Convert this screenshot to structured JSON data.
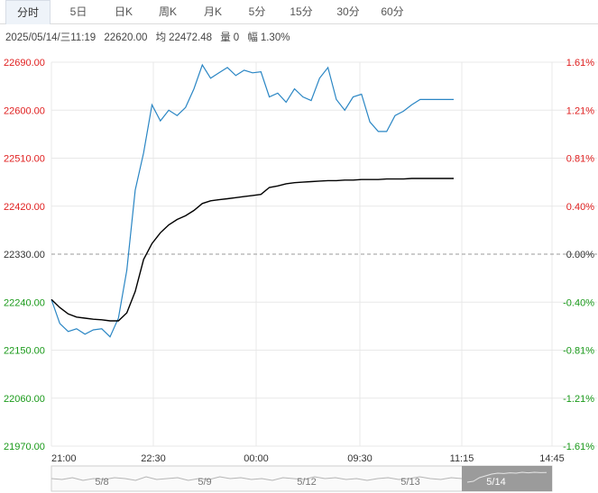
{
  "tabs": [
    {
      "label": "分时",
      "active": true
    },
    {
      "label": "5日",
      "active": false
    },
    {
      "label": "日K",
      "active": false
    },
    {
      "label": "周K",
      "active": false
    },
    {
      "label": "月K",
      "active": false
    },
    {
      "label": "5分",
      "active": false
    },
    {
      "label": "15分",
      "active": false
    },
    {
      "label": "30分",
      "active": false
    },
    {
      "label": "60分",
      "active": false
    }
  ],
  "info": {
    "datetime": "2025/05/14/三11:19",
    "price": "22620.00",
    "avg_label": "均",
    "avg_value": "22472.48",
    "vol_label": "量",
    "vol_value": "0",
    "amp_label": "幅",
    "amp_value": "1.30%"
  },
  "colors": {
    "price_line": "#2a86c4",
    "avg_line": "#000000",
    "up": "#e02020",
    "down": "#1a9a1a",
    "neutral": "#333333",
    "grid": "#e8e8e8",
    "baseline": "#9a9a9a",
    "nav_selected": "#8a8a8a"
  },
  "chart_data": {
    "type": "line",
    "ylim": [
      21970,
      22690
    ],
    "y_ticks": [
      "22690.00",
      "22600.00",
      "22510.00",
      "22420.00",
      "22330.00",
      "22240.00",
      "22150.00",
      "22060.00",
      "21970.00"
    ],
    "pct_ticks": [
      "1.61%",
      "1.21%",
      "0.81%",
      "0.40%",
      "0.00%",
      "-0.40%",
      "-0.81%",
      "-1.21%",
      "-1.61%"
    ],
    "x_ticks": [
      "21:00",
      "22:30",
      "00:00",
      "09:30",
      "11:15",
      "14:45"
    ],
    "prev_close": 22330,
    "x": [
      "21:00",
      "21:10",
      "21:20",
      "21:30",
      "21:40",
      "21:50",
      "22:00",
      "22:10",
      "22:20",
      "22:30",
      "22:40",
      "22:50",
      "23:00",
      "23:10",
      "23:20",
      "23:30",
      "23:40",
      "23:50",
      "00:00",
      "00:10",
      "00:20",
      "00:30",
      "00:40",
      "00:50",
      "01:00",
      "01:10",
      "01:20",
      "01:30",
      "01:40",
      "01:50",
      "02:00",
      "02:10",
      "02:20",
      "02:30",
      "09:00",
      "09:10",
      "09:20",
      "09:30",
      "09:40",
      "09:50",
      "10:00",
      "10:10",
      "10:20",
      "10:30",
      "10:40",
      "10:50",
      "11:00",
      "11:10",
      "11:19"
    ],
    "series": [
      {
        "values": [
          22245,
          22200,
          22185,
          22190,
          22180,
          22188,
          22190,
          22175,
          22210,
          22300,
          22450,
          22520,
          22610,
          22580,
          22600,
          22590,
          22605,
          22640,
          22685,
          22660,
          22670,
          22680,
          22665,
          22675,
          22670,
          22672,
          22625,
          22632,
          22615,
          22640,
          22625,
          22618,
          22660,
          22680,
          22620,
          22600,
          22625,
          22630,
          22578,
          22560,
          22560,
          22590,
          22598,
          22610,
          22620,
          22620,
          22620,
          22620,
          22620
        ]
      },
      {
        "values": [
          22245,
          22230,
          22218,
          22212,
          22210,
          22208,
          22207,
          22205,
          22205,
          22220,
          22260,
          22320,
          22350,
          22370,
          22385,
          22395,
          22402,
          22412,
          22425,
          22430,
          22432,
          22434,
          22436,
          22438,
          22440,
          22442,
          22455,
          22458,
          22462,
          22464,
          22465,
          22466,
          22467,
          22468,
          22468,
          22469,
          22469,
          22470,
          22470,
          22470,
          22471,
          22471,
          22471,
          22472,
          22472,
          22472,
          22472,
          22472,
          22472
        ]
      }
    ],
    "navigator_dates": [
      "5/8",
      "5/9",
      "5/12",
      "5/13",
      "5/14"
    ],
    "navigator_values": [
      0.5,
      0.45,
      0.55,
      0.4,
      0.5,
      0.45,
      0.55,
      0.5,
      0.4,
      0.6,
      0.45,
      0.5,
      0.55,
      0.4,
      0.5,
      0.45,
      0.6,
      0.5,
      0.55,
      0.45,
      0.5,
      0.4,
      0.55,
      0.5,
      0.45,
      0.6,
      0.5,
      0.55,
      0.45,
      0.5,
      0.4,
      0.5,
      0.55,
      0.45,
      0.5,
      0.6,
      0.5,
      0.45,
      0.55,
      0.5
    ],
    "navigator_selected_values": [
      0.3,
      0.35,
      0.55,
      0.65,
      0.75,
      0.8,
      0.78,
      0.82,
      0.8,
      0.85,
      0.82,
      0.85,
      0.83,
      0.84
    ]
  }
}
